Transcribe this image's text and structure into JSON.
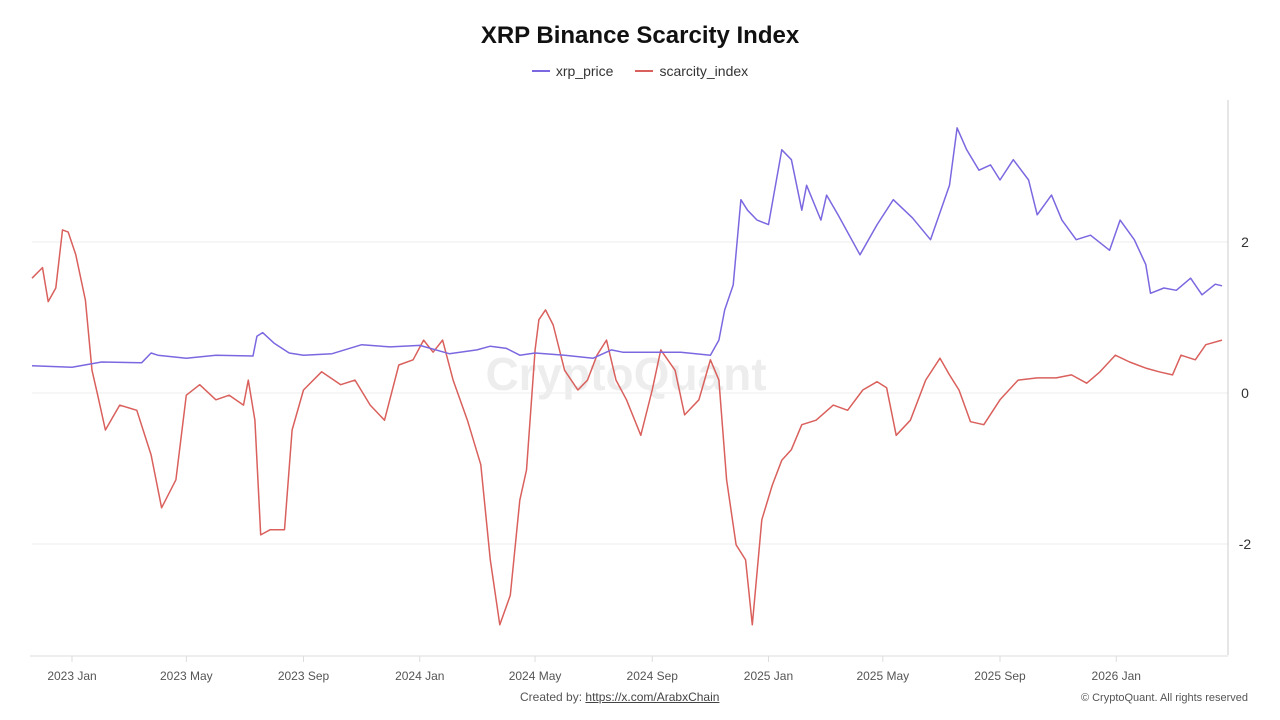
{
  "chart_data": {
    "type": "line",
    "title": "XRP Binance Scarcity Index",
    "legend_placement": "top-center",
    "grid": true,
    "xlim": [
      "2022-11-20",
      "2026-04-22"
    ],
    "ylim": [
      -3.47,
      3.88
    ],
    "y_ticks": [
      2,
      0,
      -2
    ],
    "y_tick_labels": [
      "2",
      "0",
      "-2"
    ],
    "x_ticks": [
      "2023-01-01",
      "2023-05-01",
      "2023-09-01",
      "2024-01-01",
      "2024-05-01",
      "2024-09-01",
      "2025-01-01",
      "2025-05-01",
      "2025-09-01",
      "2026-01-01"
    ],
    "x_tick_labels": [
      "2023 Jan",
      "2023 May",
      "2023 Sep",
      "2024 Jan",
      "2024 May",
      "2024 Sep",
      "2025 Jan",
      "2025 May",
      "2025 Sep",
      "2026 Jan"
    ],
    "watermark": "CryptoQuant",
    "series": [
      {
        "name": "xrp_price",
        "color": "#7b68e0",
        "points": [
          [
            "2022-11-20",
            0.36
          ],
          [
            "2023-01-01",
            0.34
          ],
          [
            "2023-02-01",
            0.41
          ],
          [
            "2023-03-15",
            0.4
          ],
          [
            "2023-03-25",
            0.53
          ],
          [
            "2023-04-01",
            0.5
          ],
          [
            "2023-05-01",
            0.46
          ],
          [
            "2023-06-01",
            0.5
          ],
          [
            "2023-07-10",
            0.49
          ],
          [
            "2023-07-14",
            0.75
          ],
          [
            "2023-07-20",
            0.8
          ],
          [
            "2023-08-01",
            0.66
          ],
          [
            "2023-08-17",
            0.53
          ],
          [
            "2023-09-01",
            0.5
          ],
          [
            "2023-10-01",
            0.52
          ],
          [
            "2023-11-01",
            0.64
          ],
          [
            "2023-12-01",
            0.61
          ],
          [
            "2024-01-01",
            0.63
          ],
          [
            "2024-02-01",
            0.52
          ],
          [
            "2024-03-01",
            0.57
          ],
          [
            "2024-03-15",
            0.62
          ],
          [
            "2024-04-01",
            0.59
          ],
          [
            "2024-04-15",
            0.5
          ],
          [
            "2024-05-01",
            0.53
          ],
          [
            "2024-06-01",
            0.5
          ],
          [
            "2024-07-01",
            0.46
          ],
          [
            "2024-07-20",
            0.57
          ],
          [
            "2024-08-01",
            0.54
          ],
          [
            "2024-09-01",
            0.54
          ],
          [
            "2024-10-01",
            0.54
          ],
          [
            "2024-11-01",
            0.5
          ],
          [
            "2024-11-10",
            0.7
          ],
          [
            "2024-11-16",
            1.1
          ],
          [
            "2024-11-25",
            1.43
          ],
          [
            "2024-12-03",
            2.56
          ],
          [
            "2024-12-10",
            2.42
          ],
          [
            "2024-12-20",
            2.29
          ],
          [
            "2025-01-01",
            2.23
          ],
          [
            "2025-01-15",
            3.22
          ],
          [
            "2025-01-25",
            3.09
          ],
          [
            "2025-02-05",
            2.42
          ],
          [
            "2025-02-10",
            2.75
          ],
          [
            "2025-02-25",
            2.29
          ],
          [
            "2025-03-03",
            2.62
          ],
          [
            "2025-03-15",
            2.36
          ],
          [
            "2025-04-07",
            1.83
          ],
          [
            "2025-04-25",
            2.23
          ],
          [
            "2025-05-12",
            2.56
          ],
          [
            "2025-06-01",
            2.32
          ],
          [
            "2025-06-20",
            2.03
          ],
          [
            "2025-07-10",
            2.75
          ],
          [
            "2025-07-18",
            3.51
          ],
          [
            "2025-07-28",
            3.22
          ],
          [
            "2025-08-10",
            2.95
          ],
          [
            "2025-08-22",
            3.02
          ],
          [
            "2025-09-01",
            2.82
          ],
          [
            "2025-09-15",
            3.09
          ],
          [
            "2025-10-01",
            2.82
          ],
          [
            "2025-10-10",
            2.36
          ],
          [
            "2025-10-25",
            2.62
          ],
          [
            "2025-11-05",
            2.29
          ],
          [
            "2025-11-20",
            2.03
          ],
          [
            "2025-12-05",
            2.09
          ],
          [
            "2025-12-25",
            1.89
          ],
          [
            "2026-01-05",
            2.29
          ],
          [
            "2026-01-20",
            2.03
          ],
          [
            "2026-02-01",
            1.7
          ],
          [
            "2026-02-06",
            1.32
          ],
          [
            "2026-02-20",
            1.39
          ],
          [
            "2026-03-05",
            1.36
          ],
          [
            "2026-03-20",
            1.52
          ],
          [
            "2026-04-01",
            1.3
          ],
          [
            "2026-04-15",
            1.44
          ],
          [
            "2026-04-22",
            1.42
          ]
        ]
      },
      {
        "name": "scarcity_index",
        "color": "#d9605c",
        "points": [
          [
            "2022-11-20",
            1.52
          ],
          [
            "2022-12-01",
            1.66
          ],
          [
            "2022-12-07",
            1.21
          ],
          [
            "2022-12-15",
            1.39
          ],
          [
            "2022-12-22",
            2.16
          ],
          [
            "2022-12-28",
            2.13
          ],
          [
            "2023-01-05",
            1.83
          ],
          [
            "2023-01-15",
            1.23
          ],
          [
            "2023-01-22",
            0.3
          ],
          [
            "2023-01-28",
            -0.03
          ],
          [
            "2023-02-05",
            -0.49
          ],
          [
            "2023-02-20",
            -0.16
          ],
          [
            "2023-03-10",
            -0.23
          ],
          [
            "2023-03-25",
            -0.82
          ],
          [
            "2023-04-05",
            -1.52
          ],
          [
            "2023-04-20",
            -1.15
          ],
          [
            "2023-05-01",
            -0.03
          ],
          [
            "2023-05-15",
            0.11
          ],
          [
            "2023-06-01",
            -0.09
          ],
          [
            "2023-06-15",
            -0.03
          ],
          [
            "2023-06-30",
            -0.16
          ],
          [
            "2023-07-05",
            0.17
          ],
          [
            "2023-07-12",
            -0.36
          ],
          [
            "2023-07-18",
            -1.88
          ],
          [
            "2023-07-28",
            -1.81
          ],
          [
            "2023-08-12",
            -1.81
          ],
          [
            "2023-08-20",
            -0.49
          ],
          [
            "2023-09-01",
            0.04
          ],
          [
            "2023-09-20",
            0.28
          ],
          [
            "2023-10-10",
            0.11
          ],
          [
            "2023-10-25",
            0.17
          ],
          [
            "2023-11-10",
            -0.16
          ],
          [
            "2023-11-25",
            -0.36
          ],
          [
            "2023-12-10",
            0.37
          ],
          [
            "2023-12-25",
            0.44
          ],
          [
            "2024-01-05",
            0.7
          ],
          [
            "2024-01-15",
            0.54
          ],
          [
            "2024-01-25",
            0.7
          ],
          [
            "2024-02-05",
            0.17
          ],
          [
            "2024-02-20",
            -0.36
          ],
          [
            "2024-03-05",
            -0.95
          ],
          [
            "2024-03-15",
            -2.21
          ],
          [
            "2024-03-25",
            -3.07
          ],
          [
            "2024-04-05",
            -2.68
          ],
          [
            "2024-04-15",
            -1.42
          ],
          [
            "2024-04-22",
            -1.02
          ],
          [
            "2024-05-01",
            0.57
          ],
          [
            "2024-05-05",
            0.97
          ],
          [
            "2024-05-12",
            1.1
          ],
          [
            "2024-05-20",
            0.9
          ],
          [
            "2024-06-01",
            0.3
          ],
          [
            "2024-06-15",
            0.04
          ],
          [
            "2024-06-25",
            0.17
          ],
          [
            "2024-07-05",
            0.5
          ],
          [
            "2024-07-15",
            0.7
          ],
          [
            "2024-07-25",
            0.17
          ],
          [
            "2024-08-05",
            -0.09
          ],
          [
            "2024-08-20",
            -0.56
          ],
          [
            "2024-09-01",
            0.04
          ],
          [
            "2024-09-10",
            0.57
          ],
          [
            "2024-09-25",
            0.3
          ],
          [
            "2024-10-05",
            -0.29
          ],
          [
            "2024-10-20",
            -0.09
          ],
          [
            "2024-11-01",
            0.44
          ],
          [
            "2024-11-10",
            0.17
          ],
          [
            "2024-11-18",
            -1.15
          ],
          [
            "2024-11-28",
            -2.01
          ],
          [
            "2024-12-08",
            -2.21
          ],
          [
            "2024-12-15",
            -3.07
          ],
          [
            "2024-12-25",
            -1.68
          ],
          [
            "2025-01-05",
            -1.22
          ],
          [
            "2025-01-15",
            -0.89
          ],
          [
            "2025-01-25",
            -0.75
          ],
          [
            "2025-02-05",
            -0.42
          ],
          [
            "2025-02-20",
            -0.36
          ],
          [
            "2025-03-10",
            -0.16
          ],
          [
            "2025-03-25",
            -0.23
          ],
          [
            "2025-04-10",
            0.04
          ],
          [
            "2025-04-25",
            0.15
          ],
          [
            "2025-05-05",
            0.07
          ],
          [
            "2025-05-15",
            -0.56
          ],
          [
            "2025-05-30",
            -0.36
          ],
          [
            "2025-06-15",
            0.17
          ],
          [
            "2025-06-30",
            0.46
          ],
          [
            "2025-07-10",
            0.24
          ],
          [
            "2025-07-20",
            0.04
          ],
          [
            "2025-08-01",
            -0.38
          ],
          [
            "2025-08-15",
            -0.42
          ],
          [
            "2025-09-01",
            -0.09
          ],
          [
            "2025-09-20",
            0.17
          ],
          [
            "2025-10-10",
            0.2
          ],
          [
            "2025-10-30",
            0.2
          ],
          [
            "2025-11-15",
            0.24
          ],
          [
            "2025-12-01",
            0.13
          ],
          [
            "2025-12-15",
            0.28
          ],
          [
            "2025-12-31",
            0.5
          ],
          [
            "2026-01-15",
            0.41
          ],
          [
            "2026-02-01",
            0.33
          ],
          [
            "2026-02-15",
            0.28
          ],
          [
            "2026-03-01",
            0.24
          ],
          [
            "2026-03-10",
            0.5
          ],
          [
            "2026-03-25",
            0.44
          ],
          [
            "2026-04-05",
            0.64
          ],
          [
            "2026-04-22",
            0.7
          ]
        ]
      }
    ]
  },
  "footer": {
    "created_by_label": "Created by:",
    "created_by_link": "https://x.com/ArabxChain",
    "copyright": "© CryptoQuant. All rights reserved"
  }
}
